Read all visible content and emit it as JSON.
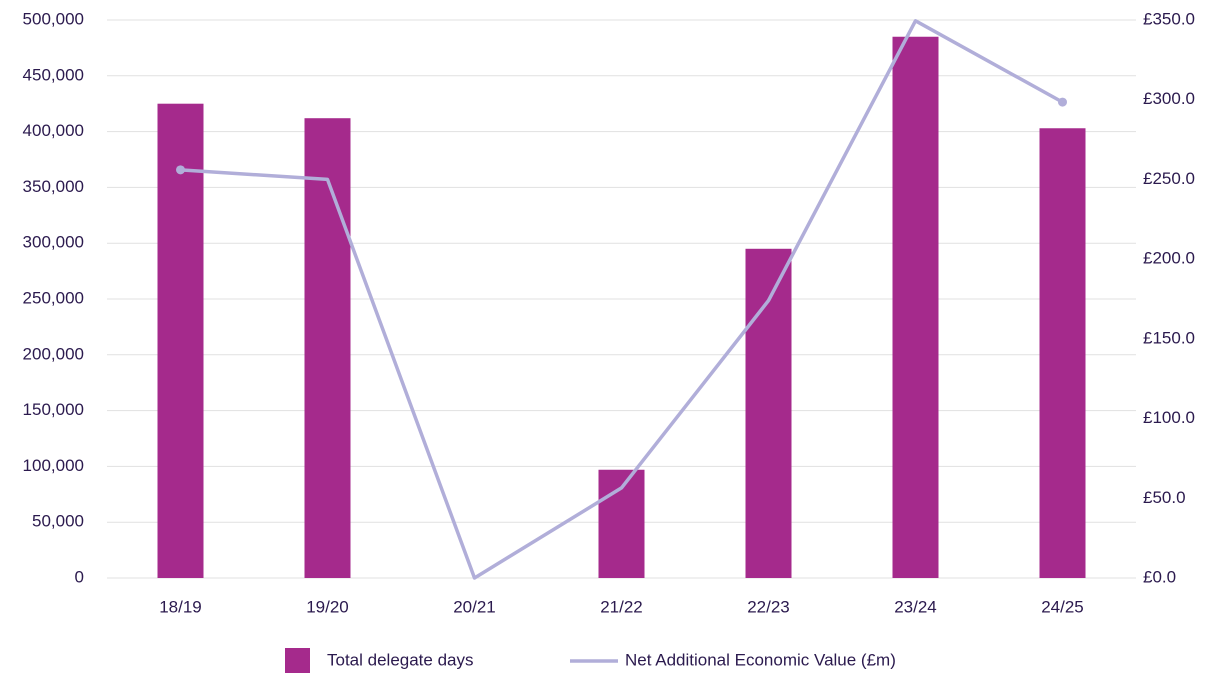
{
  "chart_data": {
    "type": "bar",
    "categories": [
      "18/19",
      "19/20",
      "20/21",
      "21/22",
      "22/23",
      "23/24",
      "24/25"
    ],
    "series": [
      {
        "name": "Total delegate days",
        "color": "#a52a8c",
        "type": "bar",
        "values": [
          425000,
          412000,
          0,
          97000,
          295000,
          485000,
          403000
        ]
      },
      {
        "name": "Net Additional Economic Value (£m)",
        "color": "#b1aed9",
        "type": "line",
        "axis": "y2",
        "values": [
          256,
          250,
          0,
          56.5,
          174,
          349.5,
          298.5
        ]
      }
    ],
    "ylim": [
      0,
      500000
    ],
    "yticks": [
      0,
      {
        "value": 50000,
        "label": "50,000"
      },
      {
        "value": 100000,
        "label": "100,000"
      },
      {
        "value": 150000,
        "label": "150,000"
      },
      {
        "value": 200000,
        "label": "200,000"
      },
      {
        "value": 250000,
        "label": "250,000"
      },
      {
        "value": 300000,
        "label": "300,000"
      },
      {
        "value": 350000,
        "label": "350,000"
      },
      {
        "value": 400000,
        "label": "400,000"
      },
      {
        "value": 450000,
        "label": "450,000"
      },
      {
        "value": 500000,
        "label": "500,000"
      }
    ],
    "y2lim": [
      0,
      350
    ],
    "y2ticks": [
      {
        "value": 0,
        "label": "£0.0"
      },
      {
        "value": 50,
        "label": "£50.0"
      },
      {
        "value": 100,
        "label": "£100.0"
      },
      {
        "value": 150,
        "label": "£150.0"
      },
      {
        "value": 200,
        "label": "£200.0"
      },
      {
        "value": 250,
        "label": "£250.0"
      },
      {
        "value": 300,
        "label": "£300.0"
      },
      {
        "value": 350,
        "label": "£350.0"
      }
    ],
    "grid": true,
    "legend": "bottom"
  }
}
